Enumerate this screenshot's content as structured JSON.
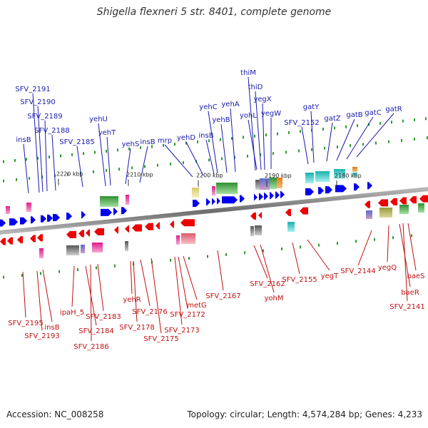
{
  "title": "Shigella flexneri 5 str. 8401, complete genome",
  "footer": {
    "accession_label": "Accession:",
    "accession": "NC_008258",
    "topology_label": "Topology:",
    "topology": "circular",
    "length_label": "Length:",
    "length": "4,574,284 bp",
    "genes_label": "Genes:",
    "genes": "4,233"
  },
  "colors": {
    "forward_gene": "#0000ee",
    "reverse_gene": "#ee0000",
    "forward_label": "#1a1ab0",
    "reverse_label": "#c01010",
    "backbone": "#888888",
    "tick": "#2e9a2e"
  },
  "scale_ticks": [
    "2220 kbp",
    "2210 kbp",
    "2200 kbp",
    "2190 kbp",
    "2180 kbp"
  ],
  "forward_labels": [
    "insB",
    "SFV_2191",
    "SFV_2190",
    "SFV_2189",
    "SFV_2188",
    "SFV_2185",
    "yehU",
    "yehT",
    "yehS",
    "insB",
    "mrp",
    "yehD",
    "insB",
    "yehC",
    "yehB",
    "yehA",
    "thiM",
    "thiD",
    "yegX",
    "yohL",
    "yegW",
    "SFV_2152",
    "gatY",
    "gatZ",
    "gatB",
    "gatC",
    "gatR"
  ],
  "reverse_labels": [
    "SFV_2195",
    "SFV_2193",
    "insB",
    "ipaH_5",
    "SFV_2184",
    "SFV_2186",
    "SFV_2183",
    "yehR",
    "SFV_2178",
    "SFV_2176",
    "SFV_2175",
    "SFV_2173",
    "SFV_2172",
    "metG",
    "SFV_2167",
    "SFV_2162",
    "yohM",
    "SFV_2155",
    "yegT",
    "SFV_2144",
    "yegQ",
    "baeR",
    "SFV_2141",
    "baeS"
  ]
}
